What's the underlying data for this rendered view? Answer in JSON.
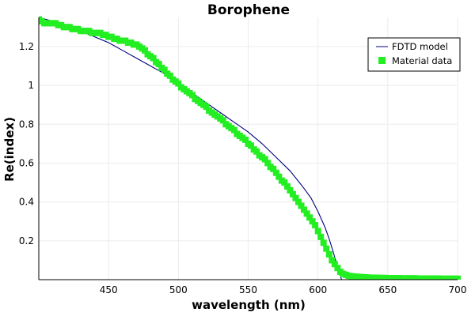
{
  "chart_data": {
    "type": "line",
    "title": "Borophene",
    "xlabel": "wavelength (nm)",
    "ylabel": "Re(index)",
    "xlim": [
      400,
      700
    ],
    "ylim": [
      0,
      1.35
    ],
    "x_ticks": [
      450,
      500,
      550,
      600,
      650,
      700
    ],
    "x_tick_labels": [
      "450",
      "500",
      "550",
      "600",
      "650",
      "700"
    ],
    "y_ticks": [
      0.2,
      0.4,
      0.6,
      0.8,
      1.0,
      1.2
    ],
    "y_tick_labels": [
      "0.2",
      "0.4",
      "0.6",
      "0.8",
      "1",
      "1.2"
    ],
    "grid": true,
    "legend_position": "top-right",
    "series": [
      {
        "name": "FDTD model",
        "style": "line",
        "color": "#000080",
        "x": [
          400,
          410,
          420,
          430,
          440,
          450,
          460,
          470,
          480,
          490,
          500,
          510,
          520,
          530,
          540,
          550,
          560,
          570,
          580,
          590,
          595,
          600,
          605,
          608,
          611,
          613,
          615,
          616,
          617
        ],
        "y": [
          1.35,
          1.33,
          1.31,
          1.28,
          1.25,
          1.22,
          1.18,
          1.14,
          1.1,
          1.06,
          1.01,
          0.96,
          0.91,
          0.86,
          0.81,
          0.76,
          0.7,
          0.63,
          0.56,
          0.47,
          0.42,
          0.35,
          0.27,
          0.21,
          0.14,
          0.09,
          0.04,
          0.02,
          0.0
        ]
      },
      {
        "name": "Material data",
        "style": "markers",
        "color": "#22ee22",
        "x": [
          400,
          402,
          404,
          406,
          408,
          410,
          412,
          414,
          416,
          418,
          420,
          422,
          424,
          426,
          428,
          430,
          432,
          434,
          436,
          438,
          440,
          442,
          444,
          446,
          448,
          450,
          452,
          454,
          456,
          458,
          460,
          462,
          464,
          466,
          468,
          470,
          472,
          474,
          476,
          478,
          480,
          482,
          484,
          486,
          488,
          490,
          492,
          494,
          496,
          498,
          500,
          502,
          504,
          506,
          508,
          510,
          512,
          514,
          516,
          518,
          520,
          522,
          524,
          526,
          528,
          530,
          532,
          534,
          536,
          538,
          540,
          542,
          544,
          546,
          548,
          550,
          552,
          554,
          556,
          558,
          560,
          562,
          564,
          566,
          568,
          570,
          572,
          574,
          576,
          578,
          580,
          582,
          584,
          586,
          588,
          590,
          592,
          594,
          596,
          598,
          600,
          602,
          604,
          606,
          608,
          610,
          612,
          614,
          616,
          618,
          620,
          622,
          624,
          626,
          628,
          630,
          632,
          634,
          636,
          638,
          640,
          642,
          644,
          646,
          648,
          650,
          652,
          654,
          656,
          658,
          660,
          662,
          664,
          666,
          668,
          670,
          672,
          674,
          676,
          678,
          680,
          682,
          684,
          686,
          688,
          690,
          692,
          694,
          696,
          698,
          700
        ],
        "y": [
          1.34,
          1.33,
          1.32,
          1.32,
          1.32,
          1.32,
          1.32,
          1.31,
          1.31,
          1.3,
          1.3,
          1.3,
          1.29,
          1.29,
          1.29,
          1.28,
          1.28,
          1.28,
          1.28,
          1.27,
          1.27,
          1.27,
          1.27,
          1.26,
          1.26,
          1.25,
          1.25,
          1.24,
          1.24,
          1.23,
          1.23,
          1.23,
          1.22,
          1.22,
          1.21,
          1.21,
          1.2,
          1.19,
          1.18,
          1.16,
          1.15,
          1.14,
          1.12,
          1.11,
          1.09,
          1.08,
          1.06,
          1.05,
          1.03,
          1.02,
          1.01,
          0.99,
          0.98,
          0.97,
          0.96,
          0.95,
          0.93,
          0.92,
          0.91,
          0.9,
          0.89,
          0.87,
          0.86,
          0.85,
          0.84,
          0.83,
          0.82,
          0.8,
          0.79,
          0.78,
          0.77,
          0.75,
          0.74,
          0.73,
          0.72,
          0.7,
          0.69,
          0.67,
          0.66,
          0.64,
          0.63,
          0.62,
          0.6,
          0.58,
          0.57,
          0.55,
          0.53,
          0.51,
          0.5,
          0.48,
          0.46,
          0.44,
          0.42,
          0.4,
          0.38,
          0.36,
          0.34,
          0.32,
          0.3,
          0.28,
          0.25,
          0.22,
          0.19,
          0.16,
          0.13,
          0.1,
          0.08,
          0.06,
          0.04,
          0.03,
          0.025,
          0.02,
          0.018,
          0.016,
          0.015,
          0.014,
          0.013,
          0.012,
          0.011,
          0.01,
          0.01,
          0.01,
          0.009,
          0.009,
          0.009,
          0.008,
          0.008,
          0.008,
          0.008,
          0.008,
          0.007,
          0.007,
          0.007,
          0.007,
          0.007,
          0.007,
          0.006,
          0.006,
          0.006,
          0.006,
          0.006,
          0.006,
          0.006,
          0.006,
          0.005,
          0.005,
          0.005,
          0.005,
          0.005,
          0.005,
          0.005
        ]
      }
    ]
  }
}
